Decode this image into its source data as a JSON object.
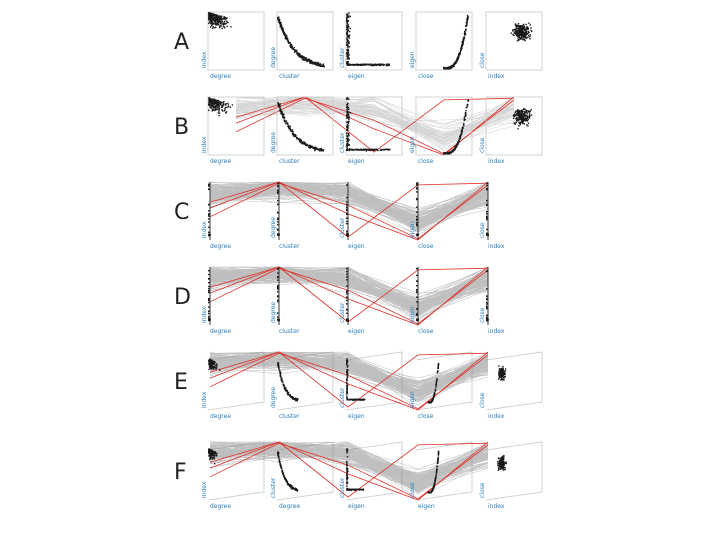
{
  "rows": [
    {
      "letter": "A",
      "mode": "scatter",
      "axis_labels": [
        [
          "degree",
          "index"
        ],
        [
          "cluster",
          "degree"
        ],
        [
          "eigen",
          "cluster"
        ],
        [
          "close",
          "eigen"
        ],
        [
          "index",
          "close"
        ]
      ]
    },
    {
      "letter": "B",
      "mode": "scatter-links",
      "axis_labels": [
        [
          "degree",
          "index"
        ],
        [
          "cluster",
          "degree"
        ],
        [
          "eigen",
          "cluster"
        ],
        [
          "close",
          "eigen"
        ],
        [
          "index",
          "close"
        ]
      ]
    },
    {
      "letter": "C",
      "mode": "parallel-spread",
      "axis_labels": [
        [
          "degree",
          "index"
        ],
        [
          "cluster",
          "degree"
        ],
        [
          "eigen",
          "cluster"
        ],
        [
          "close",
          "eigen"
        ],
        [
          "index",
          "close"
        ]
      ]
    },
    {
      "letter": "D",
      "mode": "parallel",
      "axis_labels": [
        [
          "degree",
          "index"
        ],
        [
          "cluster",
          "degree"
        ],
        [
          "eigen",
          "cluster"
        ],
        [
          "close",
          "eigen"
        ],
        [
          "index",
          "close"
        ]
      ]
    },
    {
      "letter": "E",
      "mode": "perspective",
      "axis_labels": [
        [
          "degree",
          "index"
        ],
        [
          "cluster",
          "degree"
        ],
        [
          "eigen",
          "cluster"
        ],
        [
          "close",
          "eigen"
        ],
        [
          "index",
          "close"
        ]
      ]
    },
    {
      "letter": "F",
      "mode": "perspective",
      "axis_labels": [
        [
          "degree",
          "index"
        ],
        [
          "degree",
          "cluster"
        ],
        [
          "eigen",
          "cluster"
        ],
        [
          "eigen",
          "close"
        ],
        [
          "index",
          "close"
        ]
      ]
    }
  ],
  "colors": {
    "points": "#1a1a1a",
    "lines": "#8a8a8a",
    "highlight": "#e0302a",
    "axis_label": "#2a7db8",
    "frame": "#c8c8c8"
  }
}
